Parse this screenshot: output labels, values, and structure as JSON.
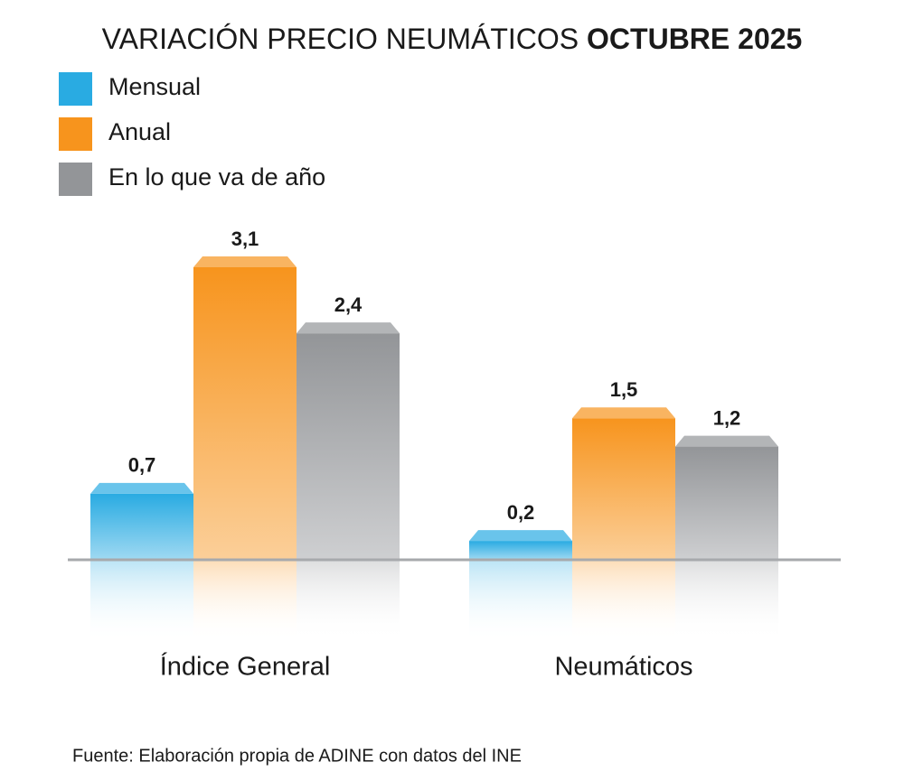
{
  "chart_data": {
    "type": "bar",
    "title": "VARIACIÓN PRECIO NEUMÁTICOS",
    "title_bold": "OCTUBRE 2025",
    "categories": [
      "Índice General",
      "Neumáticos"
    ],
    "series": [
      {
        "name": "Mensual",
        "color": "#29abe2",
        "values": [
          0.7,
          0.2
        ],
        "value_labels": [
          "0,7",
          "0,2"
        ]
      },
      {
        "name": "Anual",
        "color": "#f7941d",
        "values": [
          3.1,
          1.5
        ],
        "value_labels": [
          "3,1",
          "1,5"
        ]
      },
      {
        "name": "En lo que va de año",
        "color": "#939598",
        "values": [
          2.4,
          1.2
        ],
        "value_labels": [
          "2,4",
          "1,2"
        ]
      }
    ],
    "source": "Fuente: Elaboración propia de ADINE con datos del INE"
  }
}
